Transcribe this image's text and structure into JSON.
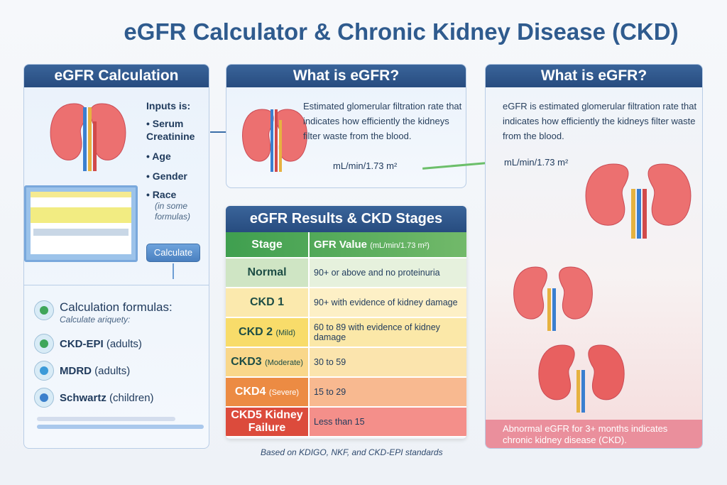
{
  "title": "eGFR Calculator & Chronic Kidney Disease (CKD)",
  "left": {
    "header": "eGFR Calculation",
    "inputs_title": "Inputs is:",
    "inputs": [
      "Serum Creatinine",
      "Age",
      "Gender",
      "Race"
    ],
    "race_note": "(in some formulas)",
    "calculate_button": "Calculate",
    "formulas_title": "Calculation formulas:",
    "formulas_subtitle": "Calculate ariquety:",
    "formulas": [
      {
        "name": "CKD-EPI",
        "note": "(adults)",
        "color": "#3fa65a"
      },
      {
        "name": "MDRD",
        "note": "(adults)",
        "color": "#3b9ad8"
      },
      {
        "name": "Schwartz",
        "note": "(children)",
        "color": "#3b80cc"
      }
    ]
  },
  "middle": {
    "header": "What is eGFR?",
    "text": "Estimated glomerular filtration rate that indicates how efficiently the kidneys filter waste from the blood.",
    "unit": "mL/min/1.73 m²"
  },
  "table": {
    "header": "eGFR Results & CKD Stages",
    "col_stage": "Stage",
    "col_value": "GFR Value",
    "col_unit": "(mL/min/1.73 m²)",
    "rows": [
      {
        "stage": "Normal",
        "qual": "",
        "value": "90+ or above and no proteinuria",
        "sc": "#cfe5c4",
        "vc": "#e6f1dd",
        "tc": "#1d4d45"
      },
      {
        "stage": "CKD 1",
        "qual": "",
        "value": "90+ with evidence of kidney damage",
        "sc": "#fbe9ad",
        "vc": "#fdf0c6",
        "tc": "#1d4d45"
      },
      {
        "stage": "CKD 2",
        "qual": "(Mild)",
        "value": "60 to 89 with evidence of kidney damage",
        "sc": "#f8dc6a",
        "vc": "#fbe8a8",
        "tc": "#1d4d45"
      },
      {
        "stage": "CKD3",
        "qual": "(Moderate)",
        "value": "30 to 59",
        "sc": "#f9d78a",
        "vc": "#fbe4ad",
        "tc": "#1d4d45"
      },
      {
        "stage": "CKD4",
        "qual": "(Severe)",
        "value": "15 to 29",
        "sc": "#ec8b43",
        "vc": "#f8b990",
        "tc": "#ffffff"
      },
      {
        "stage": "CKD5 Kidney Failure",
        "qual": "",
        "value": "Less than 15",
        "sc": "#dc4b3c",
        "vc": "#f48f8a",
        "tc": "#ffffff"
      }
    ],
    "footnote": "Based on KDIGO, NKF, and CKD-EPI standards"
  },
  "right": {
    "header": "What is eGFR?",
    "text": "eGFR is estimated glomerular filtration rate that indicates how efficiently the kidneys filter waste from the blood.",
    "unit": "mL/min/1.73 m²",
    "bottom": "Abnormal eGFR for 3+ months indicates chronic kidney disease (CKD)."
  }
}
